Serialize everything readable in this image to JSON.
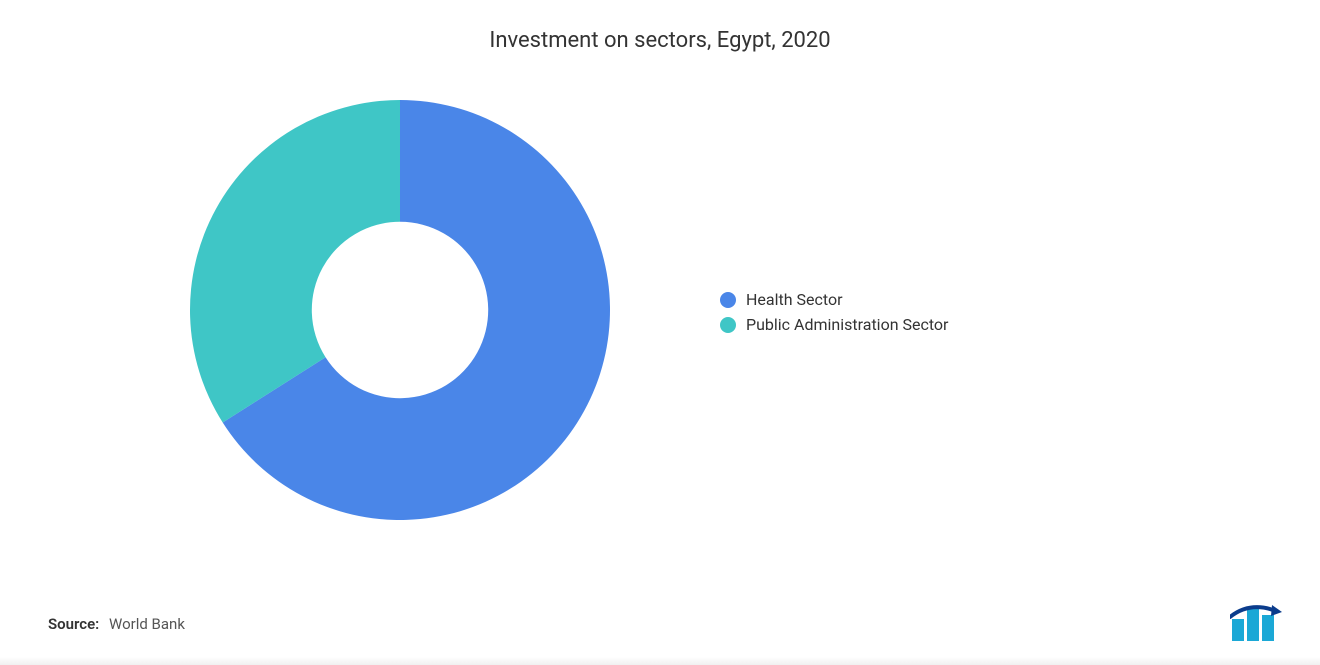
{
  "chart": {
    "type": "donut",
    "title": "Investment on sectors, Egypt, 2020",
    "title_fontsize": 22,
    "title_color": "#333333",
    "background_color": "#ffffff",
    "inner_radius_ratio": 0.42,
    "outer_radius": 210,
    "start_angle_deg": -90,
    "slices": [
      {
        "label": "Health Sector",
        "value": 66,
        "color": "#4a86e8"
      },
      {
        "label": "Public Administration Sector",
        "value": 34,
        "color": "#3fc6c6"
      }
    ],
    "legend": {
      "position": "right",
      "items": [
        {
          "label": "Health Sector",
          "color": "#4a86e8"
        },
        {
          "label": "Public Administration Sector",
          "color": "#3fc6c6"
        }
      ],
      "label_fontsize": 16,
      "label_color": "#333333",
      "swatch_shape": "circle",
      "swatch_size": 16
    }
  },
  "source": {
    "label": "Source:",
    "value": "World Bank",
    "label_fontsize": 15,
    "label_weight": 600,
    "value_weight": 400
  },
  "logo": {
    "name": "mordor-intelligence-logo",
    "bar_colors": [
      "#1ba8d6",
      "#1ba8d6",
      "#1ba8d6"
    ],
    "accent_color": "#0b3c8c"
  }
}
